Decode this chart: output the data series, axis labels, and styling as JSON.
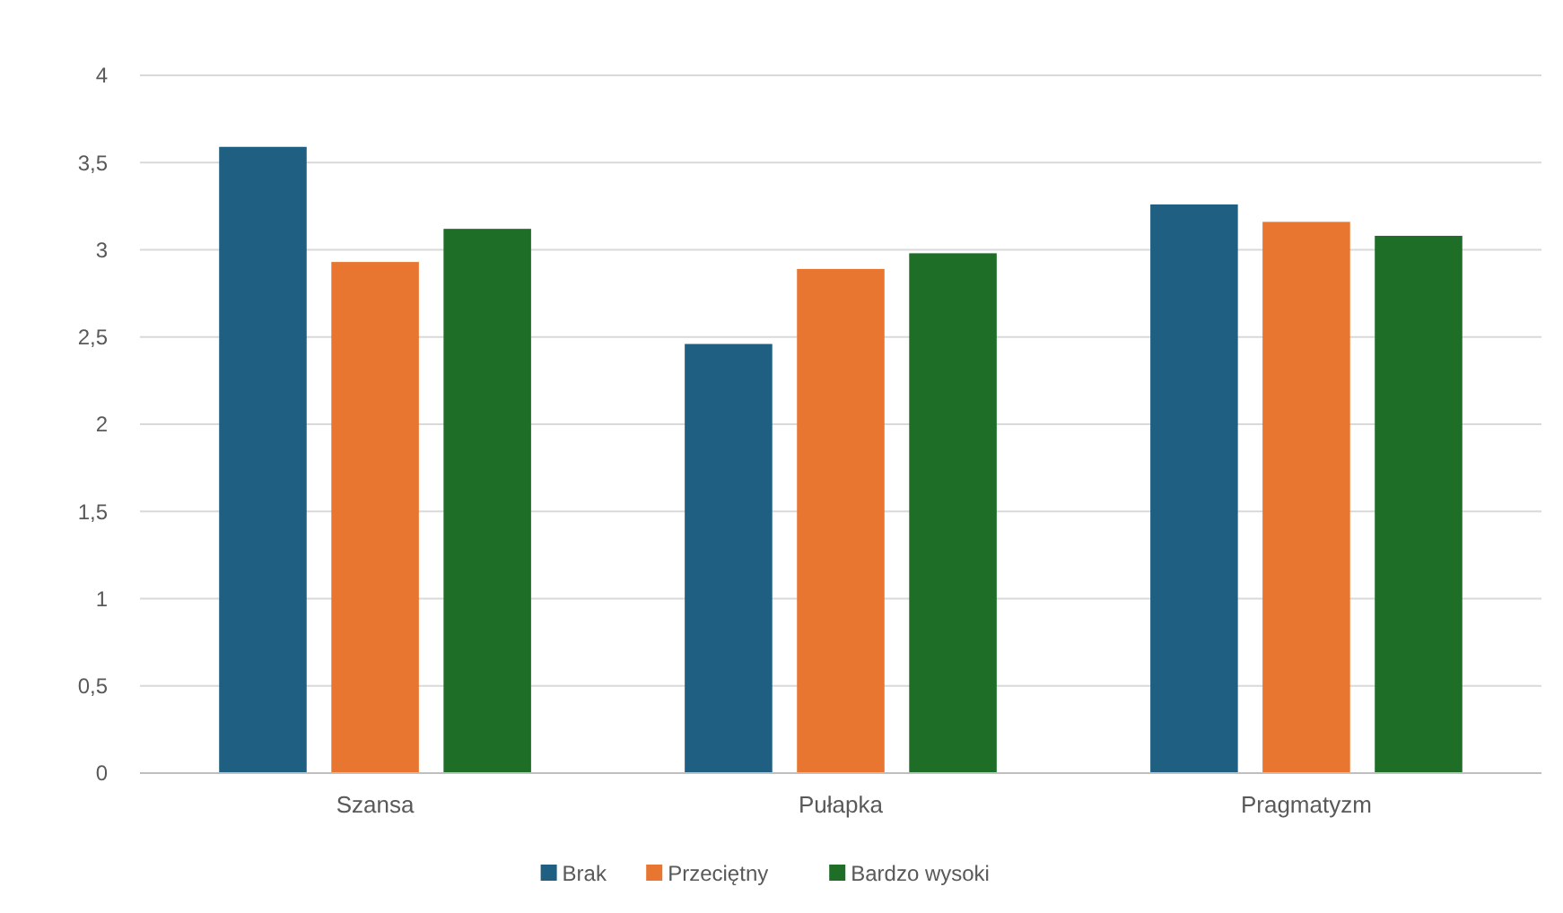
{
  "chart_data": {
    "type": "bar",
    "categories": [
      "Szansa",
      "Pułapka",
      "Pragmatyzm"
    ],
    "series": [
      {
        "name": "Brak",
        "color": "#1f5f82",
        "values": [
          3.59,
          2.46,
          3.26
        ]
      },
      {
        "name": "Przeciętny",
        "color": "#e87530",
        "values": [
          2.93,
          2.89,
          3.16
        ]
      },
      {
        "name": "Bardzo wysoki",
        "color": "#1e6e28",
        "values": [
          3.12,
          2.98,
          3.08
        ]
      }
    ],
    "ylim": [
      0,
      4
    ],
    "yticks": [
      0,
      {
        "value": 0.5,
        "label": "0,5"
      },
      1,
      {
        "value": 1.5,
        "label": "1,5"
      },
      2,
      {
        "value": 2.5,
        "label": "2,5"
      },
      3,
      {
        "value": 3.5,
        "label": "3,5"
      },
      4
    ],
    "grid": "y",
    "legend": "bottom"
  }
}
